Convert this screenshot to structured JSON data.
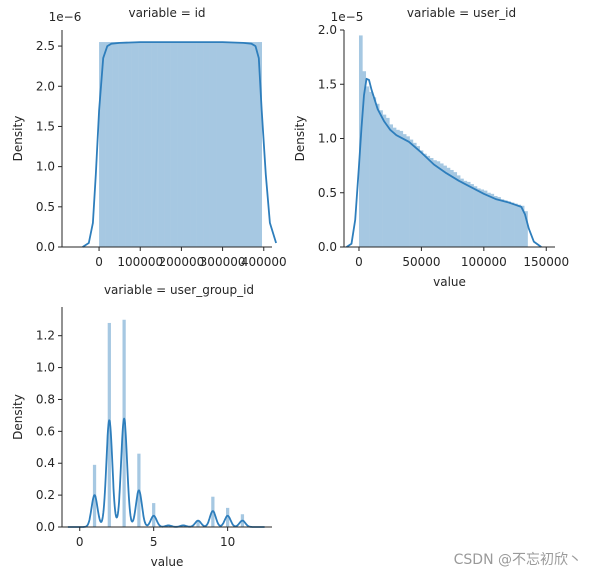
{
  "watermark": "CSDN @不忘初欣丶",
  "style": {
    "bar_color": "#a6c8e2",
    "line_color": "#2e7ebc",
    "axis_color": "#262626"
  },
  "chart_data": [
    {
      "type": "histogram-kde",
      "title": "variable = id",
      "ylabel": "Density",
      "xlabel": "",
      "offset_label": "1e−6",
      "xlim": [
        -90000,
        420000
      ],
      "ylim": [
        0,
        2.7
      ],
      "xticks": [
        0,
        100000,
        200000,
        300000,
        400000
      ],
      "xtick_labels": [
        "0",
        "100000",
        "200000",
        "300000",
        "400000"
      ],
      "yticks": [
        0,
        0.5,
        1.0,
        1.5,
        2.0,
        2.5
      ],
      "ytick_labels": [
        "0.0",
        "0.5",
        "1.0",
        "1.5",
        "2.0",
        "2.5"
      ],
      "bins": {
        "start": 0,
        "width": 7900,
        "heights": [
          2.55,
          2.55,
          2.55,
          2.55,
          2.55,
          2.55,
          2.55,
          2.55,
          2.55,
          2.55,
          2.55,
          2.55,
          2.55,
          2.55,
          2.55,
          2.55,
          2.55,
          2.55,
          2.55,
          2.55,
          2.55,
          2.55,
          2.55,
          2.55,
          2.55,
          2.55,
          2.55,
          2.55,
          2.55,
          2.55,
          2.55,
          2.55,
          2.55,
          2.55,
          2.55,
          2.55,
          2.55,
          2.55,
          2.55,
          2.55,
          2.55,
          2.55,
          2.55,
          2.55,
          2.55,
          2.55,
          2.55,
          2.55,
          2.55,
          2.55
        ]
      },
      "kde": {
        "x": [
          -40000,
          -25000,
          -15000,
          -8000,
          0,
          10000,
          20000,
          30000,
          50000,
          100000,
          200000,
          300000,
          350000,
          370000,
          380000,
          388000,
          395000,
          405000,
          415000,
          430000
        ],
        "y": [
          0.0,
          0.05,
          0.3,
          0.9,
          1.7,
          2.35,
          2.5,
          2.53,
          2.54,
          2.55,
          2.55,
          2.55,
          2.54,
          2.53,
          2.5,
          2.35,
          1.7,
          0.9,
          0.3,
          0.05
        ]
      }
    },
    {
      "type": "histogram-kde",
      "title": "variable = user_id",
      "ylabel": "Density",
      "xlabel": "value",
      "offset_label": "1e−5",
      "xlim": [
        -12000,
        157000
      ],
      "ylim": [
        0,
        2.0
      ],
      "xticks": [
        0,
        50000,
        100000,
        150000
      ],
      "xtick_labels": [
        "0",
        "50000",
        "100000",
        "150000"
      ],
      "yticks": [
        0,
        0.5,
        1.0,
        1.5,
        2.0
      ],
      "ytick_labels": [
        "0.0",
        "0.5",
        "1.0",
        "1.5",
        "2.0"
      ],
      "bins": {
        "start": 0,
        "width": 2700,
        "heights": [
          1.95,
          1.62,
          1.48,
          1.43,
          1.38,
          1.32,
          1.26,
          1.22,
          1.19,
          1.13,
          1.1,
          1.08,
          1.07,
          1.04,
          1.02,
          0.99,
          0.96,
          0.93,
          0.89,
          0.86,
          0.84,
          0.82,
          0.8,
          0.79,
          0.77,
          0.75,
          0.73,
          0.71,
          0.69,
          0.66,
          0.63,
          0.61,
          0.6,
          0.58,
          0.56,
          0.54,
          0.53,
          0.52,
          0.5,
          0.49,
          0.47,
          0.46,
          0.44,
          0.43,
          0.42,
          0.41,
          0.4,
          0.39,
          0.38,
          0.33
        ]
      },
      "kde": {
        "x": [
          -10000,
          -6000,
          -3000,
          0,
          2000,
          4000,
          6000,
          8000,
          10000,
          15000,
          20000,
          25000,
          30000,
          40000,
          50000,
          60000,
          70000,
          80000,
          90000,
          100000,
          110000,
          120000,
          125000,
          130000,
          133000,
          136000,
          140000,
          146000
        ],
        "y": [
          0.0,
          0.03,
          0.25,
          0.75,
          1.1,
          1.4,
          1.55,
          1.54,
          1.45,
          1.27,
          1.16,
          1.08,
          1.03,
          0.97,
          0.87,
          0.76,
          0.68,
          0.61,
          0.55,
          0.49,
          0.44,
          0.41,
          0.39,
          0.37,
          0.3,
          0.17,
          0.05,
          0.0
        ]
      }
    },
    {
      "type": "histogram-kde",
      "title": "variable = user_group_id",
      "ylabel": "Density",
      "xlabel": "value",
      "offset_label": "",
      "xlim": [
        -1.2,
        13
      ],
      "ylim": [
        0,
        1.38
      ],
      "xticks": [
        0,
        5,
        10
      ],
      "xtick_labels": [
        "0",
        "5",
        "10"
      ],
      "yticks": [
        0,
        0.2,
        0.4,
        0.6,
        0.8,
        1.0,
        1.2
      ],
      "ytick_labels": [
        "0.0",
        "0.2",
        "0.4",
        "0.6",
        "0.8",
        "1.0",
        "1.2"
      ],
      "bars": {
        "width": 0.22,
        "x": [
          1,
          2,
          3,
          4,
          5,
          6,
          7,
          8,
          9,
          10,
          11
        ],
        "heights": [
          0.39,
          1.28,
          1.3,
          0.46,
          0.15,
          0.01,
          0.01,
          0.04,
          0.19,
          0.12,
          0.08
        ]
      },
      "kde": {
        "components": [
          {
            "mu": 1,
            "h": 0.2
          },
          {
            "mu": 2,
            "h": 0.67
          },
          {
            "mu": 3,
            "h": 0.68
          },
          {
            "mu": 4,
            "h": 0.23
          },
          {
            "mu": 5,
            "h": 0.07
          },
          {
            "mu": 6,
            "h": 0.01
          },
          {
            "mu": 7,
            "h": 0.01
          },
          {
            "mu": 8,
            "h": 0.04
          },
          {
            "mu": 9,
            "h": 0.1
          },
          {
            "mu": 10,
            "h": 0.07
          },
          {
            "mu": 11,
            "h": 0.04
          }
        ],
        "sigma": 0.2,
        "range": [
          -0.8,
          12.5
        ]
      }
    }
  ]
}
